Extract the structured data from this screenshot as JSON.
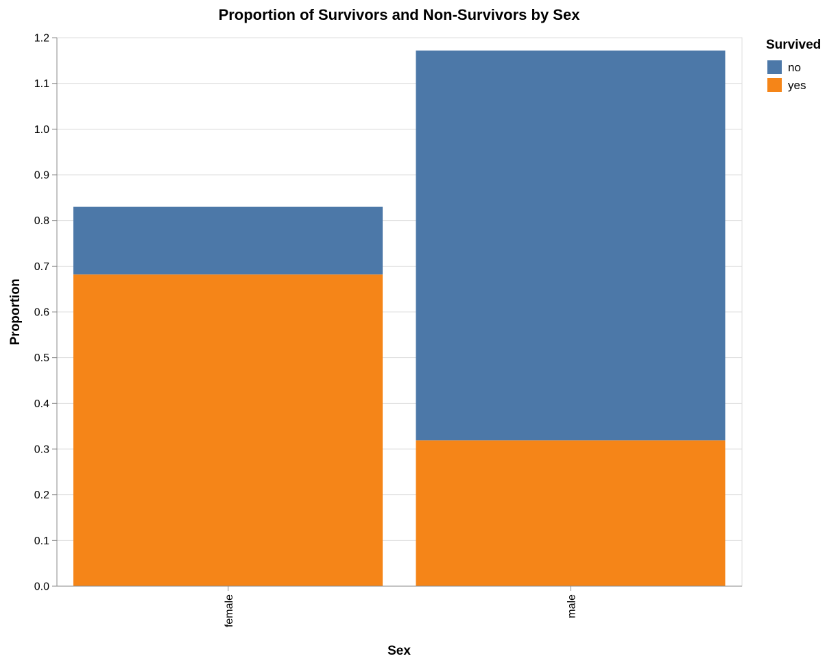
{
  "chart_data": {
    "type": "bar",
    "stacked": true,
    "title": "Proportion of Survivors and Non-Survivors by Sex",
    "xlabel": "Sex",
    "ylabel": "Proportion",
    "categories": [
      "female",
      "male"
    ],
    "series": [
      {
        "name": "yes",
        "values": [
          0.682,
          0.319
        ],
        "color": "#f58518"
      },
      {
        "name": "no",
        "values": [
          0.148,
          0.853
        ],
        "color": "#4c78a8"
      }
    ],
    "ylim": [
      0,
      1.2
    ],
    "yticks": [
      "0.0",
      "0.1",
      "0.2",
      "0.3",
      "0.4",
      "0.5",
      "0.6",
      "0.7",
      "0.8",
      "0.9",
      "1.0",
      "1.1",
      "1.2"
    ],
    "grid": true,
    "legend": {
      "title": "Survived",
      "placement": "top-right",
      "entries": [
        {
          "label": "no",
          "color": "#4c78a8"
        },
        {
          "label": "yes",
          "color": "#f58518"
        }
      ]
    }
  }
}
